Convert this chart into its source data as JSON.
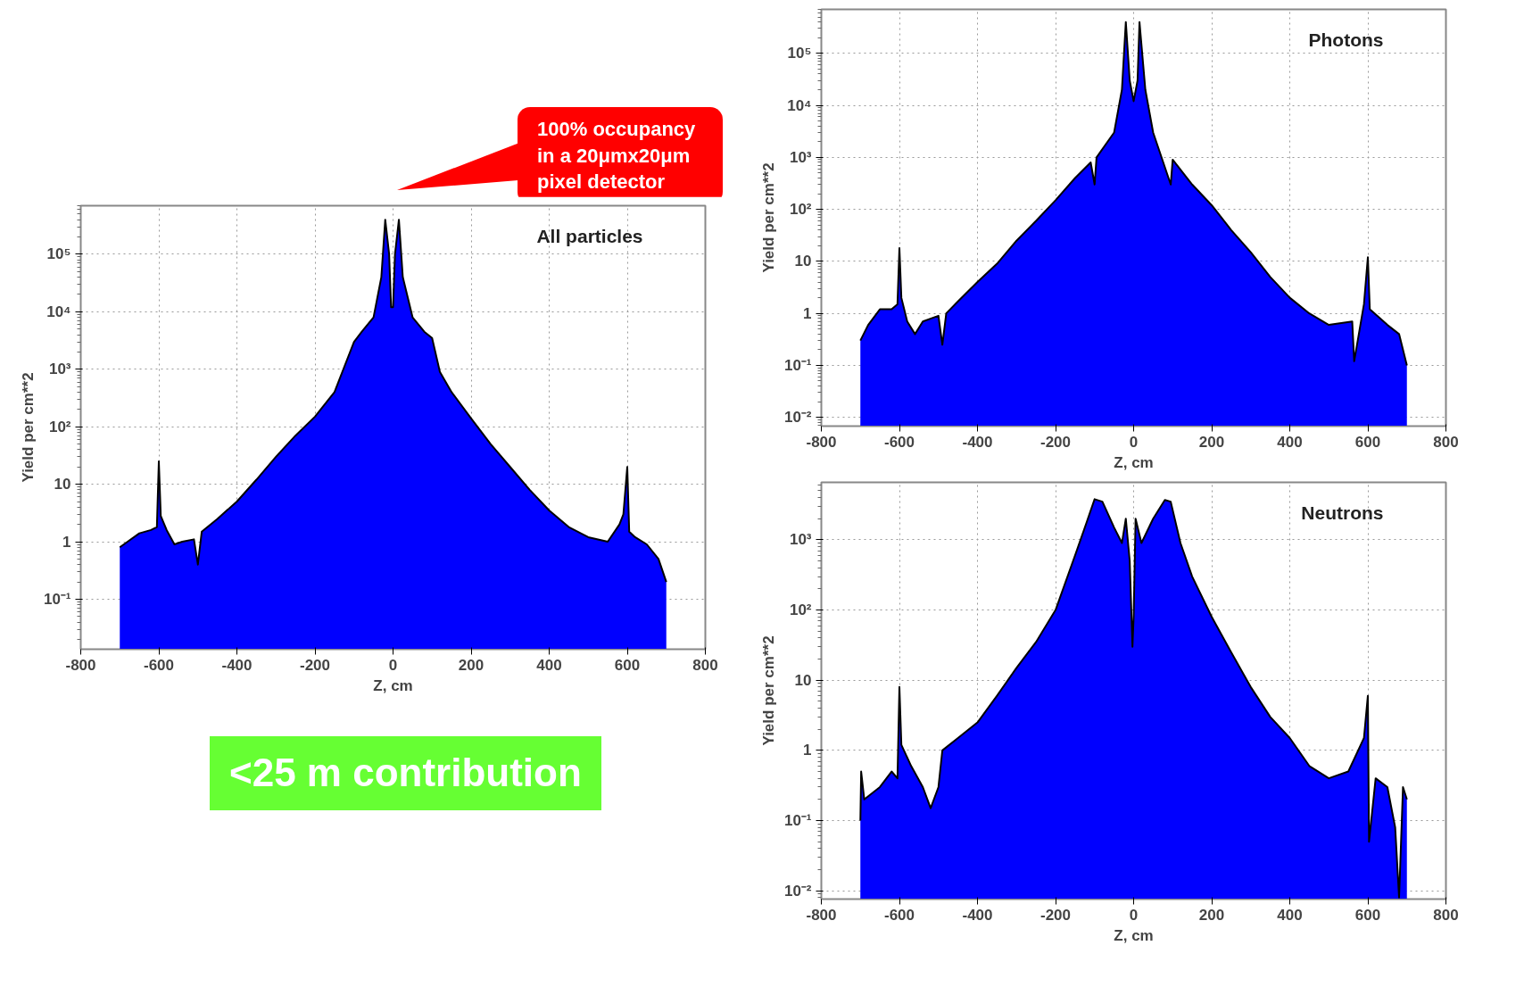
{
  "chart_data": [
    {
      "type": "area",
      "title": "All particles",
      "xlabel": "Z, cm",
      "ylabel": "Yield per cm**2",
      "log": "y",
      "grid": true,
      "xlim": [
        -800,
        800
      ],
      "xticks": [
        -800,
        -600,
        -400,
        -200,
        0,
        200,
        400,
        600,
        800
      ],
      "ylim": [
        0.0135,
        700000
      ],
      "yticks": [
        {
          "value": 0.1,
          "label": "10⁻¹"
        },
        1,
        10,
        {
          "value": 100,
          "label": "10²"
        },
        {
          "value": 1000,
          "label": "10³"
        },
        {
          "value": 10000,
          "label": "10⁴"
        },
        {
          "value": 100000,
          "label": "10⁵"
        }
      ],
      "annotations": [
        "100% occupancy in a 20μmx20μm pixel detector",
        "<25 m contribution"
      ],
      "series": [
        {
          "color": "#0000ff",
          "x": [
            -700,
            -680,
            -650,
            -620,
            -605,
            -600,
            -595,
            -580,
            -560,
            -540,
            -510,
            -500,
            -490,
            -450,
            -400,
            -350,
            -300,
            -250,
            -200,
            -150,
            -100,
            -80,
            -50,
            -30,
            -20,
            -10,
            -5,
            0,
            5,
            15,
            25,
            50,
            80,
            100,
            120,
            150,
            200,
            250,
            300,
            350,
            400,
            450,
            500,
            550,
            580,
            590,
            600,
            605,
            620,
            650,
            680,
            700
          ],
          "values": [
            0.8,
            1.0,
            1.4,
            1.6,
            1.8,
            25,
            2.8,
            1.6,
            0.9,
            1.0,
            1.1,
            0.4,
            1.5,
            2.5,
            5,
            12,
            30,
            70,
            150,
            400,
            3000,
            4500,
            8000,
            40000,
            400000,
            100000,
            12000,
            12000,
            100000,
            400000,
            40000,
            8000,
            4500,
            3500,
            900,
            400,
            140,
            50,
            20,
            8,
            3.5,
            1.8,
            1.2,
            1.0,
            2,
            3,
            20,
            1.5,
            1.2,
            0.9,
            0.5,
            0.2
          ]
        }
      ]
    },
    {
      "type": "area",
      "title": "Photons",
      "xlabel": "Z, cm",
      "ylabel": "Yield per cm**2",
      "log": "y",
      "grid": true,
      "xlim": [
        -800,
        800
      ],
      "xticks": [
        -800,
        -600,
        -400,
        -200,
        0,
        200,
        400,
        600,
        800
      ],
      "ylim": [
        0.0068,
        700000
      ],
      "yticks": [
        {
          "value": 0.01,
          "label": "10⁻²"
        },
        {
          "value": 0.1,
          "label": "10⁻¹"
        },
        1,
        10,
        {
          "value": 100,
          "label": "10²"
        },
        {
          "value": 1000,
          "label": "10³"
        },
        {
          "value": 10000,
          "label": "10⁴"
        },
        {
          "value": 100000,
          "label": "10⁵"
        }
      ],
      "series": [
        {
          "color": "#0000ff",
          "x": [
            -700,
            -680,
            -650,
            -620,
            -605,
            -600,
            -595,
            -580,
            -560,
            -540,
            -500,
            -490,
            -480,
            -450,
            -400,
            -350,
            -300,
            -250,
            -200,
            -150,
            -110,
            -100,
            -95,
            -50,
            -30,
            -20,
            -10,
            0,
            10,
            15,
            30,
            50,
            95,
            100,
            150,
            200,
            250,
            300,
            350,
            400,
            450,
            500,
            560,
            565,
            590,
            600,
            605,
            650,
            680,
            700
          ],
          "values": [
            0.3,
            0.6,
            1.2,
            1.2,
            1.5,
            18,
            2,
            0.7,
            0.4,
            0.7,
            0.9,
            0.25,
            1.0,
            1.7,
            4,
            9,
            25,
            60,
            150,
            400,
            800,
            300,
            1000,
            3000,
            20000,
            400000,
            30000,
            12000,
            30000,
            400000,
            20000,
            3000,
            300,
            900,
            300,
            120,
            40,
            15,
            5,
            2,
            1,
            0.6,
            0.7,
            0.12,
            1.5,
            12,
            1.2,
            0.6,
            0.4,
            0.1
          ]
        }
      ]
    },
    {
      "type": "area",
      "title": "Neutrons",
      "xlabel": "Z, cm",
      "ylabel": "Yield per cm**2",
      "log": "y",
      "grid": true,
      "xlim": [
        -800,
        800
      ],
      "xticks": [
        -800,
        -600,
        -400,
        -200,
        0,
        200,
        400,
        600,
        800
      ],
      "ylim": [
        0.0076,
        6600
      ],
      "yticks": [
        {
          "value": 0.01,
          "label": "10⁻²"
        },
        {
          "value": 0.1,
          "label": "10⁻¹"
        },
        1,
        10,
        {
          "value": 100,
          "label": "10²"
        },
        {
          "value": 1000,
          "label": "10³"
        }
      ],
      "series": [
        {
          "color": "#0000ff",
          "x": [
            -700,
            -698,
            -690,
            -650,
            -620,
            -605,
            -600,
            -595,
            -570,
            -540,
            -520,
            -500,
            -490,
            -450,
            -400,
            -350,
            -300,
            -250,
            -200,
            -150,
            -120,
            -100,
            -80,
            -50,
            -30,
            -20,
            -10,
            -3,
            0,
            5,
            20,
            50,
            80,
            95,
            120,
            150,
            200,
            250,
            300,
            350,
            400,
            450,
            500,
            550,
            590,
            600,
            603,
            620,
            650,
            670,
            680,
            690,
            700
          ],
          "values": [
            0.1,
            0.5,
            0.2,
            0.3,
            0.5,
            0.4,
            8,
            1.2,
            0.6,
            0.3,
            0.15,
            0.3,
            1.0,
            1.5,
            2.5,
            6,
            15,
            35,
            100,
            600,
            1800,
            3800,
            3500,
            1500,
            900,
            2000,
            500,
            30,
            80,
            2000,
            900,
            2000,
            3700,
            3500,
            900,
            300,
            80,
            25,
            8,
            3,
            1.5,
            0.6,
            0.4,
            0.5,
            1.5,
            6,
            0.05,
            0.4,
            0.3,
            0.08,
            0.008,
            0.3,
            0.2
          ]
        }
      ]
    }
  ]
}
